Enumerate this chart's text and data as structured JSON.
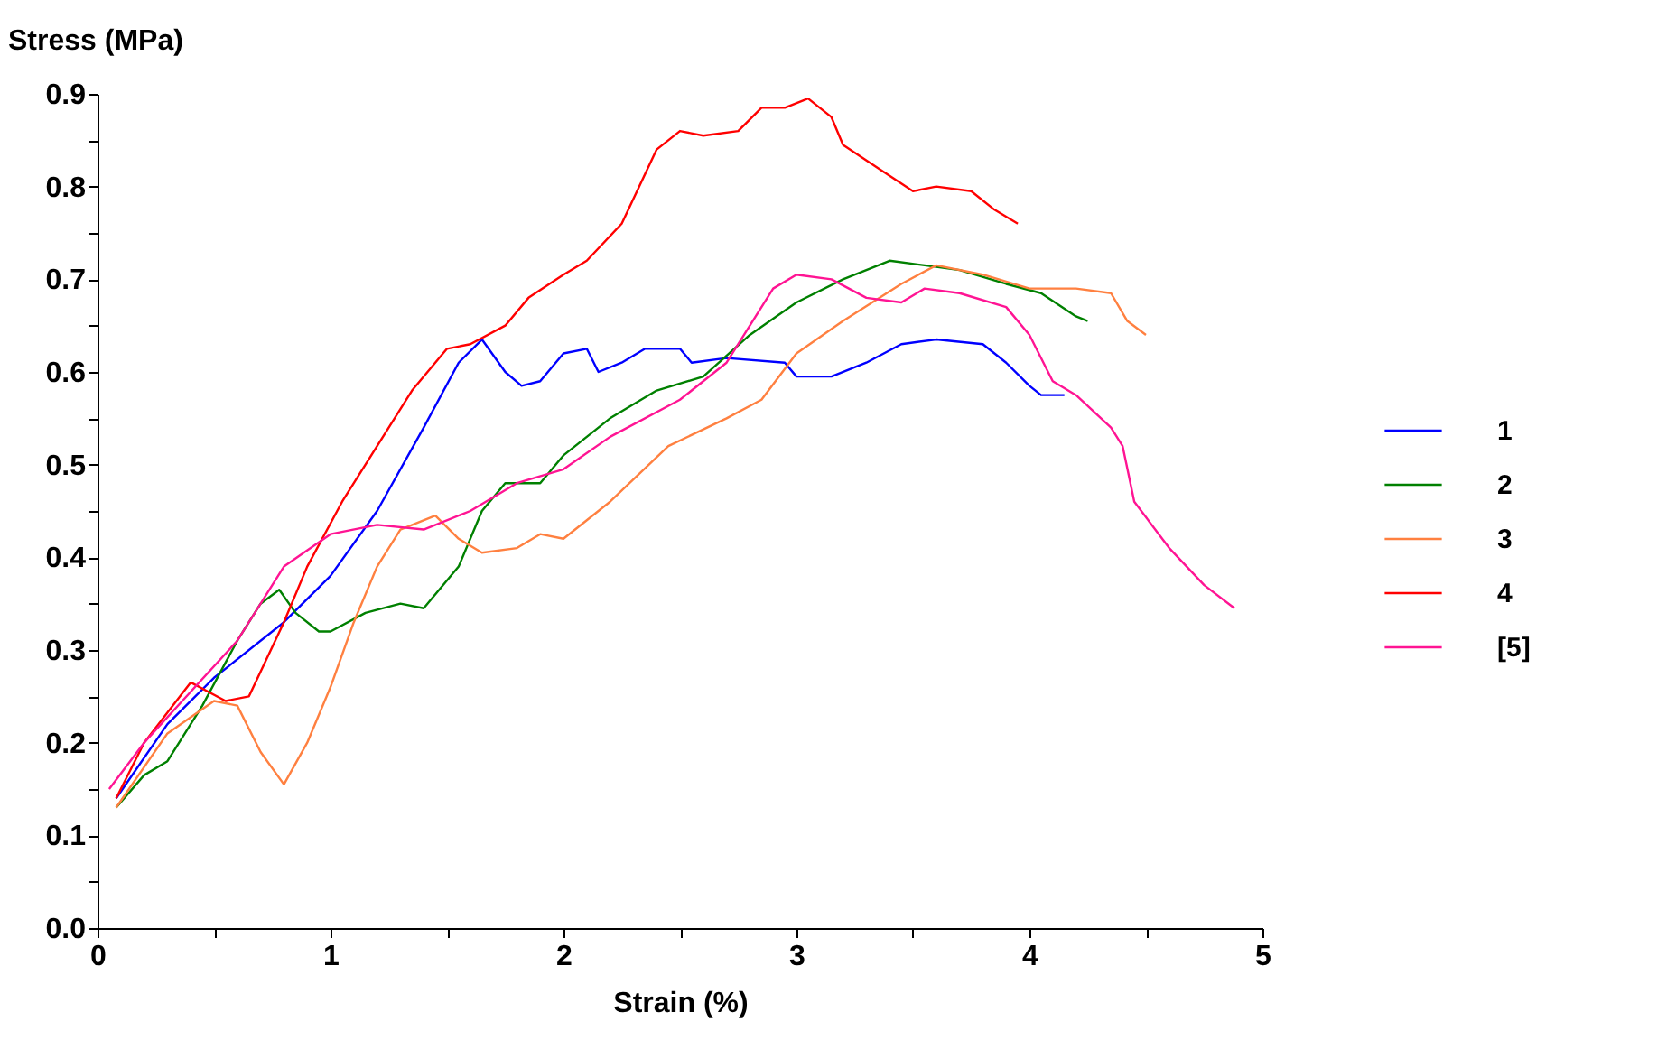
{
  "chart_data": {
    "type": "line",
    "xlabel": "Strain (%)",
    "ylabel": "Stress (MPa)",
    "xlim": [
      0,
      5
    ],
    "ylim": [
      0,
      0.9
    ],
    "xticks": [
      0,
      {
        "value": 0.5,
        "label": null
      },
      1,
      {
        "value": 1.5,
        "label": null
      },
      2,
      {
        "value": 2.5,
        "label": null
      },
      3,
      {
        "value": 3.5,
        "label": null
      },
      4,
      {
        "value": 4.5,
        "label": null
      },
      5
    ],
    "yticks": [
      {
        "value": 0,
        "label": "0.0"
      },
      {
        "value": 0.05,
        "label": null
      },
      0.1,
      {
        "value": 0.15,
        "label": null
      },
      0.2,
      {
        "value": 0.25,
        "label": null
      },
      0.3,
      {
        "value": 0.35,
        "label": null
      },
      0.4,
      {
        "value": 0.45,
        "label": null
      },
      0.5,
      {
        "value": 0.55,
        "label": null
      },
      0.6,
      {
        "value": 0.65,
        "label": null
      },
      0.7,
      {
        "value": 0.75,
        "label": null
      },
      0.8,
      {
        "value": 0.85,
        "label": null
      },
      0.9
    ],
    "grid": false,
    "legend": "right",
    "line_style": "solid",
    "marker": "none",
    "series": [
      {
        "name": "1",
        "color": "#0000ff",
        "x": [
          0.08,
          0.3,
          0.5,
          0.8,
          1.0,
          1.2,
          1.4,
          1.55,
          1.65,
          1.75,
          1.82,
          1.9,
          2.0,
          2.1,
          2.15,
          2.25,
          2.35,
          2.5,
          2.55,
          2.7,
          2.95,
          3.0,
          3.15,
          3.3,
          3.45,
          3.6,
          3.8,
          3.9,
          4.0,
          4.05,
          4.15
        ],
        "values": [
          0.14,
          0.22,
          0.27,
          0.33,
          0.38,
          0.45,
          0.54,
          0.61,
          0.635,
          0.6,
          0.585,
          0.59,
          0.62,
          0.625,
          0.6,
          0.61,
          0.625,
          0.625,
          0.61,
          0.615,
          0.61,
          0.595,
          0.595,
          0.61,
          0.63,
          0.635,
          0.63,
          0.61,
          0.585,
          0.575,
          0.575
        ]
      },
      {
        "name": "2",
        "color": "#008000",
        "x": [
          0.08,
          0.2,
          0.3,
          0.45,
          0.6,
          0.7,
          0.78,
          0.85,
          0.95,
          1.0,
          1.15,
          1.3,
          1.4,
          1.55,
          1.65,
          1.75,
          1.9,
          2.0,
          2.2,
          2.4,
          2.6,
          2.8,
          3.0,
          3.2,
          3.4,
          3.55,
          3.7,
          3.9,
          4.05,
          4.2,
          4.25
        ],
        "values": [
          0.13,
          0.165,
          0.18,
          0.24,
          0.31,
          0.35,
          0.365,
          0.34,
          0.32,
          0.32,
          0.34,
          0.35,
          0.345,
          0.39,
          0.45,
          0.48,
          0.48,
          0.51,
          0.55,
          0.58,
          0.595,
          0.64,
          0.675,
          0.7,
          0.72,
          0.715,
          0.71,
          0.695,
          0.685,
          0.66,
          0.655
        ]
      },
      {
        "name": "3",
        "color": "#ff8040",
        "x": [
          0.08,
          0.3,
          0.5,
          0.6,
          0.7,
          0.8,
          0.9,
          1.0,
          1.1,
          1.2,
          1.3,
          1.45,
          1.55,
          1.65,
          1.8,
          1.9,
          2.0,
          2.2,
          2.45,
          2.7,
          2.85,
          3.0,
          3.2,
          3.45,
          3.6,
          3.8,
          4.0,
          4.2,
          4.35,
          4.42,
          4.5
        ],
        "values": [
          0.13,
          0.21,
          0.245,
          0.24,
          0.19,
          0.155,
          0.2,
          0.26,
          0.33,
          0.39,
          0.43,
          0.445,
          0.42,
          0.405,
          0.41,
          0.425,
          0.42,
          0.46,
          0.52,
          0.55,
          0.57,
          0.62,
          0.655,
          0.695,
          0.715,
          0.705,
          0.69,
          0.69,
          0.685,
          0.655,
          0.64
        ]
      },
      {
        "name": "4",
        "color": "#ff0000",
        "x": [
          0.08,
          0.2,
          0.4,
          0.55,
          0.65,
          0.8,
          0.9,
          1.05,
          1.2,
          1.35,
          1.5,
          1.6,
          1.75,
          1.85,
          2.0,
          2.1,
          2.25,
          2.4,
          2.5,
          2.6,
          2.75,
          2.85,
          2.95,
          3.05,
          3.15,
          3.2,
          3.35,
          3.5,
          3.6,
          3.75,
          3.85,
          3.95
        ],
        "values": [
          0.14,
          0.2,
          0.265,
          0.245,
          0.25,
          0.33,
          0.39,
          0.46,
          0.52,
          0.58,
          0.625,
          0.63,
          0.65,
          0.68,
          0.705,
          0.72,
          0.76,
          0.84,
          0.86,
          0.855,
          0.86,
          0.885,
          0.885,
          0.895,
          0.875,
          0.845,
          0.82,
          0.795,
          0.8,
          0.795,
          0.775,
          0.76
        ]
      },
      {
        "name": "[5]",
        "color": "#ff1493",
        "x": [
          0.05,
          0.2,
          0.4,
          0.6,
          0.8,
          1.0,
          1.2,
          1.4,
          1.6,
          1.8,
          2.0,
          2.2,
          2.5,
          2.7,
          2.9,
          3.0,
          3.15,
          3.3,
          3.45,
          3.55,
          3.7,
          3.9,
          4.0,
          4.1,
          4.2,
          4.35,
          4.4,
          4.45,
          4.6,
          4.75,
          4.88
        ],
        "values": [
          0.15,
          0.2,
          0.255,
          0.31,
          0.39,
          0.425,
          0.435,
          0.43,
          0.45,
          0.48,
          0.495,
          0.53,
          0.57,
          0.61,
          0.69,
          0.705,
          0.7,
          0.68,
          0.675,
          0.69,
          0.685,
          0.67,
          0.64,
          0.59,
          0.575,
          0.54,
          0.52,
          0.46,
          0.41,
          0.37,
          0.345
        ]
      }
    ]
  }
}
